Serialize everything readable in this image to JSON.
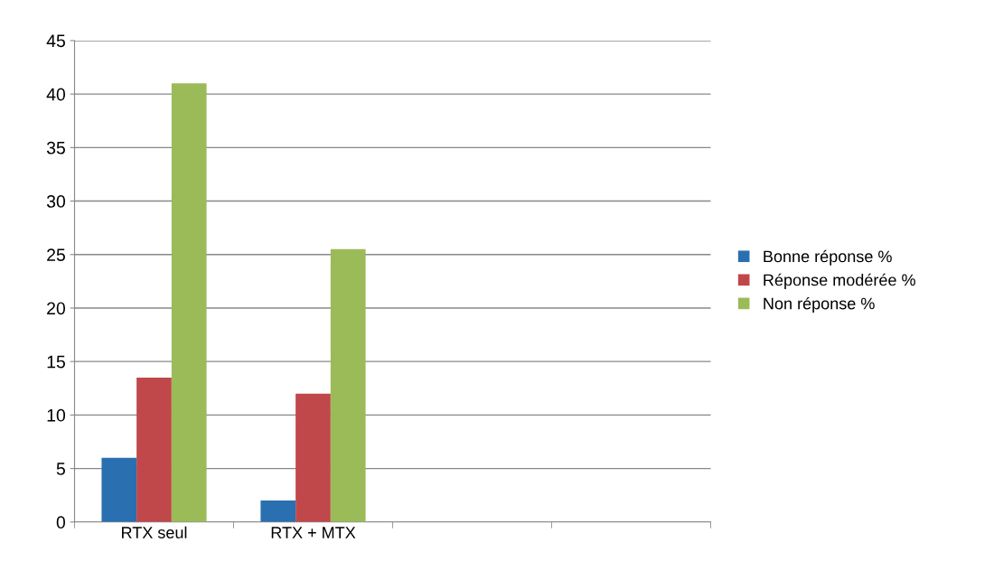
{
  "chart_data": {
    "type": "bar",
    "categories": [
      "RTX seul",
      "RTX + MTX",
      null,
      null
    ],
    "series": [
      {
        "name": "Bonne réponse %",
        "color": "#2a6fb0",
        "values": [
          6,
          2,
          null,
          null
        ]
      },
      {
        "name": "Réponse modérée %",
        "color": "#c0474a",
        "values": [
          13.5,
          12,
          null,
          null
        ]
      },
      {
        "name": "Non réponse %",
        "color": "#9bbb59",
        "values": [
          41,
          25.5,
          null,
          null
        ]
      }
    ],
    "ylim": [
      0,
      45
    ],
    "yticks": [
      0,
      5,
      10,
      15,
      20,
      25,
      30,
      35,
      40,
      45
    ],
    "grid": "y",
    "legend": "right"
  }
}
